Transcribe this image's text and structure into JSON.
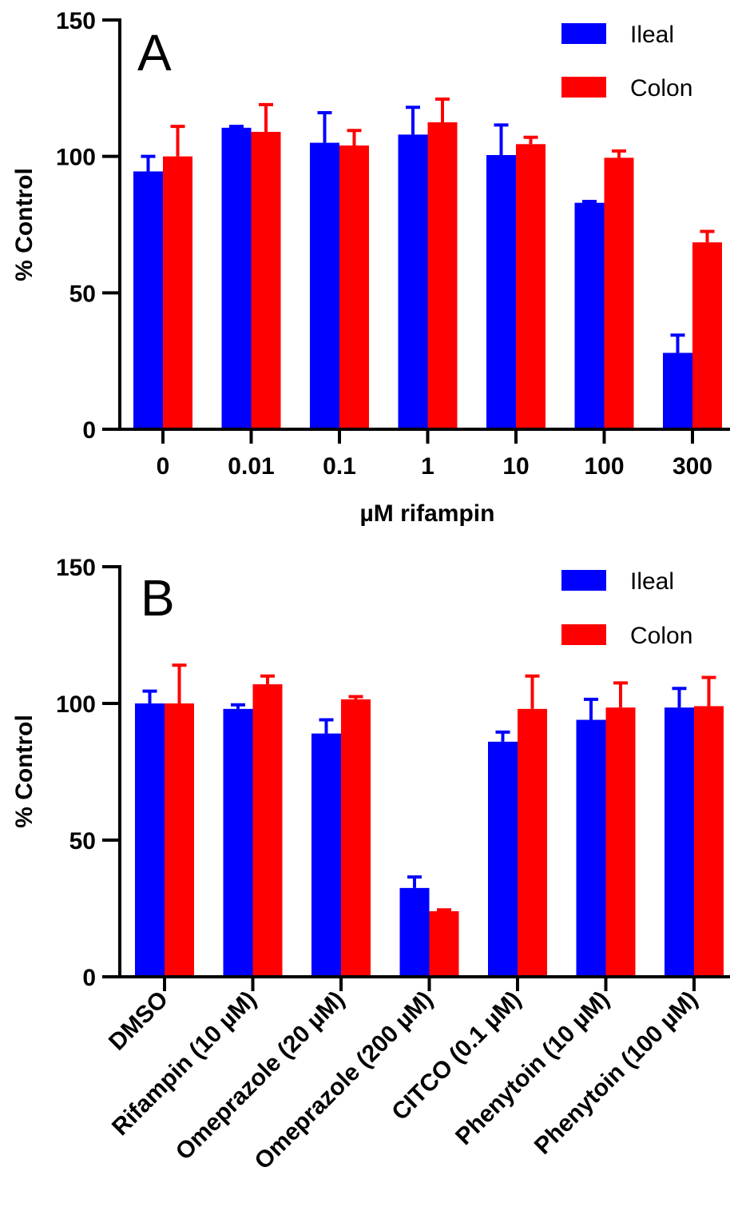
{
  "colors": {
    "ileal": "#0000FF",
    "colon": "#FF0000",
    "axis": "#000000"
  },
  "chart_data": [
    {
      "type": "bar",
      "panel_label": "A",
      "xlabel": "µM rifampin",
      "ylabel": "% Control",
      "ylim": [
        0,
        150
      ],
      "yticks": [
        "0",
        "50",
        "100",
        "150"
      ],
      "categories": [
        "0",
        "0.01",
        "0.1",
        "1",
        "10",
        "100",
        "300"
      ],
      "legend_position": "top-right",
      "series": [
        {
          "name": "Ileal",
          "color": "#0000FF",
          "values": [
            94.5,
            110.5,
            105,
            108,
            100.5,
            83,
            28
          ],
          "errors": [
            5.5,
            0.5,
            11,
            10,
            11,
            0.5,
            6.5
          ]
        },
        {
          "name": "Colon",
          "color": "#FF0000",
          "values": [
            100,
            109,
            104,
            112.5,
            104.5,
            99.5,
            68.5
          ],
          "errors": [
            11,
            10,
            5.5,
            8.5,
            2.5,
            2.5,
            4
          ]
        }
      ]
    },
    {
      "type": "bar",
      "panel_label": "B",
      "xlabel": "",
      "ylabel": "% Control",
      "ylim": [
        0,
        150
      ],
      "yticks": [
        "0",
        "50",
        "100",
        "150"
      ],
      "categories": [
        "DMSO",
        "Rifampin (10 µM)",
        "Omeprazole (20 µM)",
        "Omeprazole (200 µM)",
        "CITCO (0.1 µM)",
        "Phenytoin (10 µM)",
        "Phenytoin (100 µM)"
      ],
      "legend_position": "top-right",
      "series": [
        {
          "name": "Ileal",
          "color": "#0000FF",
          "values": [
            100,
            98,
            89,
            32.5,
            86,
            94,
            98.5
          ],
          "errors": [
            4.5,
            1.5,
            5,
            4,
            3.5,
            7.5,
            7
          ]
        },
        {
          "name": "Colon",
          "color": "#FF0000",
          "values": [
            100,
            107,
            101.5,
            24,
            98,
            98.5,
            99
          ],
          "errors": [
            14,
            3,
            1,
            0.5,
            12,
            9,
            10.5
          ]
        }
      ]
    }
  ]
}
